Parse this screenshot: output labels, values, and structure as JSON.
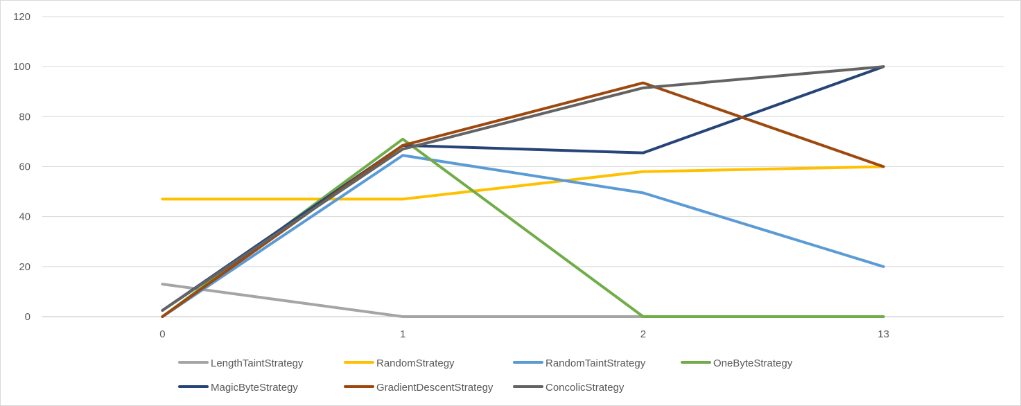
{
  "chart_data": {
    "type": "line",
    "categories": [
      "0",
      "1",
      "2",
      "13"
    ],
    "ylim": [
      0,
      120
    ],
    "yticks": [
      0,
      20,
      40,
      60,
      80,
      100,
      120
    ],
    "grid": true,
    "legend_position": "bottom",
    "series": [
      {
        "name": "LengthTaintStrategy",
        "color": "#a5a5a5",
        "values": [
          13,
          0,
          0,
          0
        ]
      },
      {
        "name": "RandomStrategy",
        "color": "#ffc000",
        "values": [
          47,
          47,
          58,
          60
        ]
      },
      {
        "name": "RandomTaintStrategy",
        "color": "#5b9bd5",
        "values": [
          0,
          64.5,
          49.5,
          20
        ]
      },
      {
        "name": "OneByteStrategy",
        "color": "#70ad47",
        "values": [
          0,
          71,
          0,
          0
        ]
      },
      {
        "name": "MagicByteStrategy",
        "color": "#264478",
        "values": [
          2.5,
          68.5,
          65.5,
          100
        ]
      },
      {
        "name": "GradientDescentStrategy",
        "color": "#9e480e",
        "values": [
          0,
          68.5,
          93.5,
          60
        ]
      },
      {
        "name": "ConcolicStrategy",
        "color": "#636363",
        "values": [
          2.5,
          67,
          91.5,
          100
        ]
      }
    ]
  }
}
